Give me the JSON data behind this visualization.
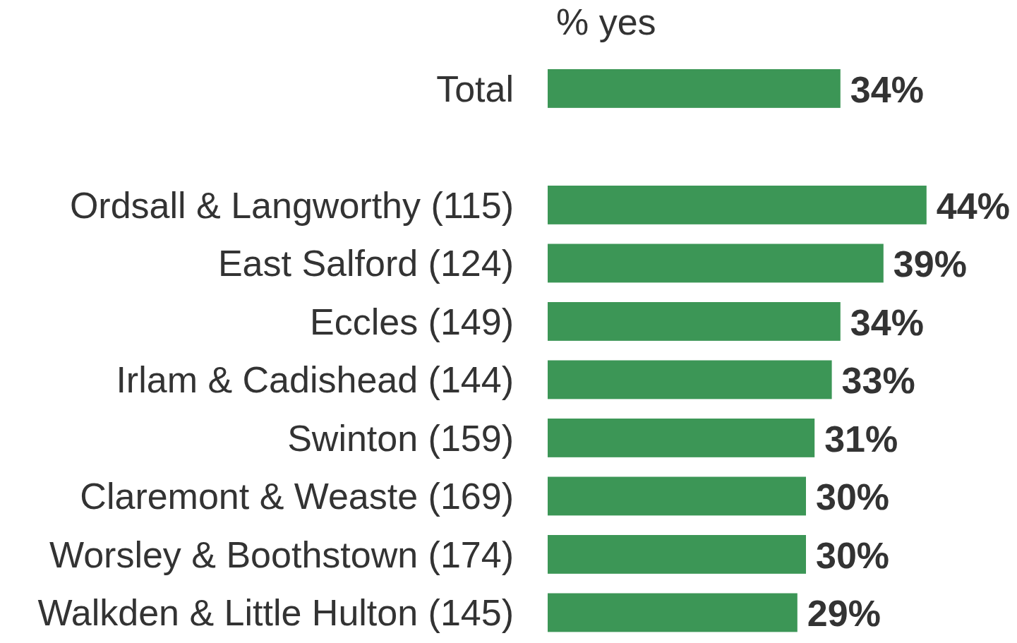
{
  "chart_data": {
    "type": "bar",
    "orientation": "horizontal",
    "title": "% yes",
    "categories": [
      "Total",
      null,
      "Ordsall & Langworthy (115)",
      "East Salford (124)",
      "Eccles (149)",
      "Irlam & Cadishead (144)",
      "Swinton (159)",
      "Claremont & Weaste (169)",
      "Worsley & Boothstown (174)",
      "Walkden & Little Hulton (145)"
    ],
    "values": [
      34,
      null,
      44,
      39,
      34,
      33,
      31,
      30,
      30,
      29
    ],
    "value_labels": [
      "34%",
      null,
      "44%",
      "39%",
      "34%",
      "33%",
      "31%",
      "30%",
      "30%",
      "29%"
    ],
    "color": "#3c9656"
  }
}
